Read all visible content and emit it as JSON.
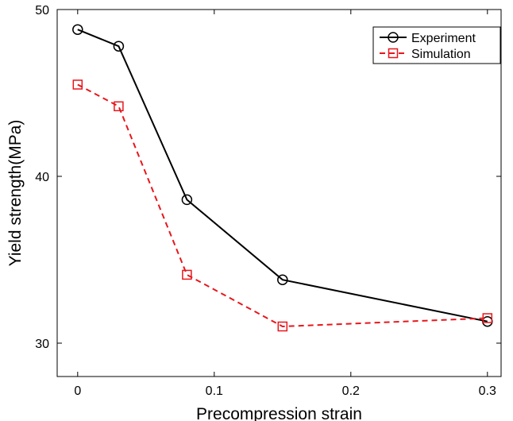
{
  "chart_data": {
    "type": "line",
    "title": "",
    "xlabel": "Precompression strain",
    "ylabel": "Yield strength(MPa)",
    "xlim": [
      -0.015,
      0.31
    ],
    "ylim": [
      28,
      50
    ],
    "xticks": [
      0,
      0.1,
      0.2,
      0.3
    ],
    "xtick_labels": [
      "0",
      "0.1",
      "0.2",
      "0.3"
    ],
    "yticks": [
      30,
      40,
      50
    ],
    "ytick_labels": [
      "30",
      "40",
      "50"
    ],
    "grid": false,
    "legend": {
      "position": "top-right",
      "box": true
    },
    "series": [
      {
        "name": "Experiment",
        "x": [
          0,
          0.03,
          0.08,
          0.15,
          0.3
        ],
        "y": [
          48.8,
          47.8,
          38.6,
          33.8,
          31.3
        ],
        "color": "#000000",
        "line_style": "solid",
        "marker": "circle"
      },
      {
        "name": "Simulation",
        "x": [
          0,
          0.03,
          0.08,
          0.15,
          0.3
        ],
        "y": [
          45.5,
          44.2,
          34.1,
          31.0,
          31.5
        ],
        "color": "#e8161b",
        "line_style": "dashed",
        "marker": "square"
      }
    ]
  }
}
